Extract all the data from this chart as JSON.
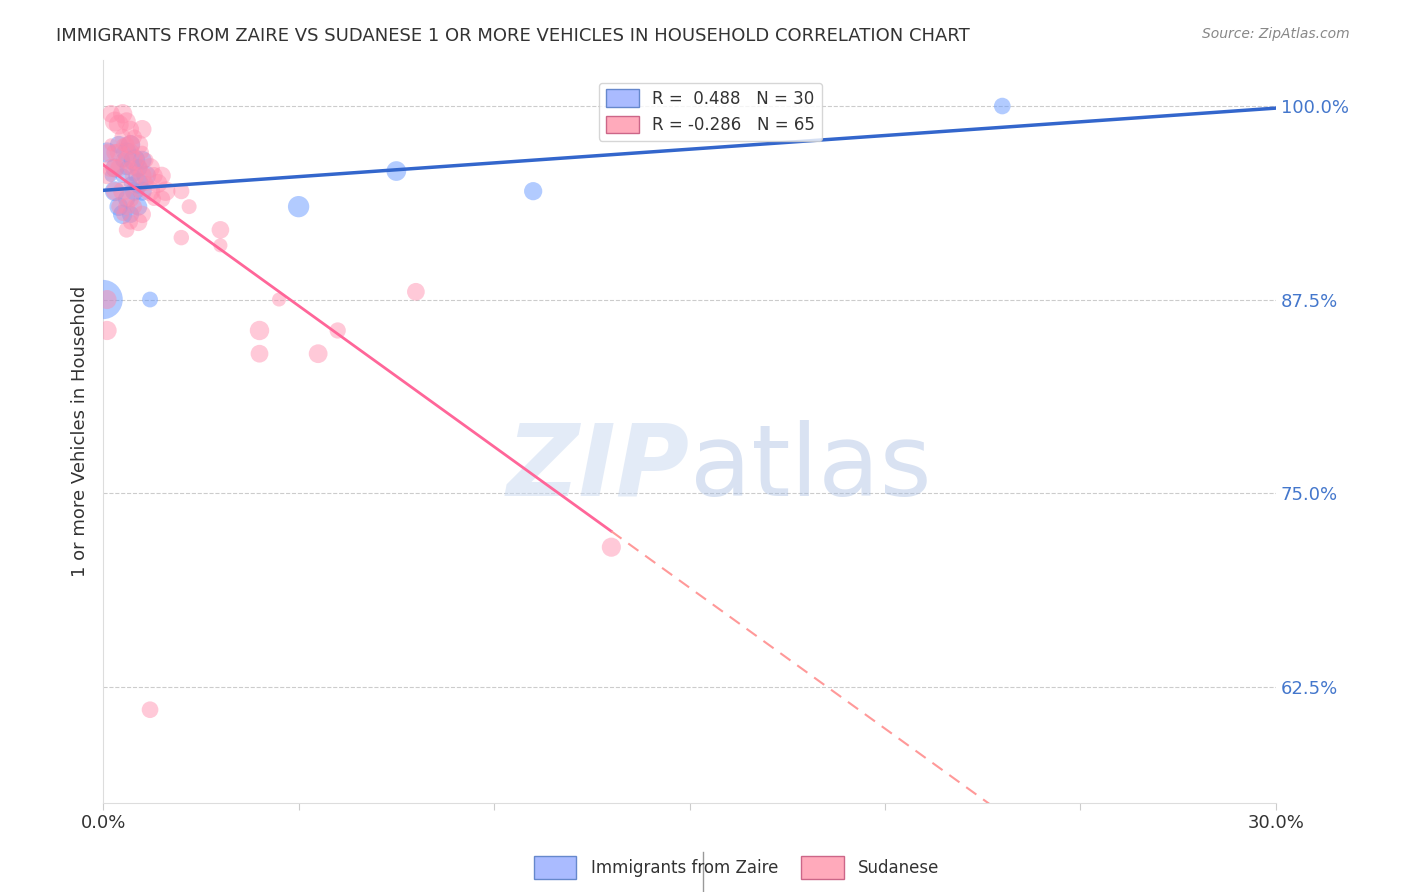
{
  "title": "IMMIGRANTS FROM ZAIRE VS SUDANESE 1 OR MORE VEHICLES IN HOUSEHOLD CORRELATION CHART",
  "source": "Source: ZipAtlas.com",
  "ylabel": "1 or more Vehicles in Household",
  "ytick_labels": [
    "100.0%",
    "87.5%",
    "75.0%",
    "62.5%"
  ],
  "ytick_values": [
    1.0,
    0.875,
    0.75,
    0.625
  ],
  "xmin": 0.0,
  "xmax": 0.3,
  "ymin": 0.55,
  "ymax": 1.03,
  "watermark_zip": "ZIP",
  "watermark_atlas": "atlas",
  "zaire_color": "#6699ff",
  "sudanese_color": "#ff88aa",
  "zaire_marker_alpha": 0.5,
  "sudanese_marker_alpha": 0.45,
  "zaire_R": 0.488,
  "zaire_N": 30,
  "sudanese_R": -0.286,
  "sudanese_N": 65,
  "zaire_legend_label": "R =  0.488   N = 30",
  "sudanese_legend_label": "R = -0.286   N = 65",
  "bottom_legend_zaire": "Immigrants from Zaire",
  "bottom_legend_sudanese": "Sudanese",
  "zaire_points": [
    [
      0.001,
      0.97
    ],
    [
      0.002,
      0.955
    ],
    [
      0.003,
      0.96
    ],
    [
      0.003,
      0.945
    ],
    [
      0.004,
      0.975
    ],
    [
      0.005,
      0.965
    ],
    [
      0.005,
      0.955
    ],
    [
      0.006,
      0.97
    ],
    [
      0.006,
      0.96
    ],
    [
      0.007,
      0.95
    ],
    [
      0.007,
      0.975
    ],
    [
      0.008,
      0.965
    ],
    [
      0.008,
      0.955
    ],
    [
      0.009,
      0.96
    ],
    [
      0.009,
      0.95
    ],
    [
      0.01,
      0.965
    ],
    [
      0.011,
      0.955
    ],
    [
      0.012,
      0.875
    ],
    [
      0.05,
      0.935
    ],
    [
      0.075,
      0.958
    ],
    [
      0.11,
      0.945
    ],
    [
      0.0,
      0.875
    ],
    [
      0.23,
      1.0
    ],
    [
      0.005,
      0.93
    ],
    [
      0.006,
      0.94
    ],
    [
      0.007,
      0.93
    ],
    [
      0.008,
      0.945
    ],
    [
      0.009,
      0.935
    ],
    [
      0.01,
      0.945
    ],
    [
      0.004,
      0.935
    ]
  ],
  "sudanese_points": [
    [
      0.002,
      0.995
    ],
    [
      0.003,
      0.99
    ],
    [
      0.004,
      0.988
    ],
    [
      0.005,
      0.995
    ],
    [
      0.005,
      0.975
    ],
    [
      0.006,
      0.99
    ],
    [
      0.006,
      0.975
    ],
    [
      0.007,
      0.985
    ],
    [
      0.007,
      0.97
    ],
    [
      0.007,
      0.96
    ],
    [
      0.008,
      0.98
    ],
    [
      0.008,
      0.965
    ],
    [
      0.008,
      0.955
    ],
    [
      0.009,
      0.975
    ],
    [
      0.009,
      0.96
    ],
    [
      0.009,
      0.945
    ],
    [
      0.01,
      0.97
    ],
    [
      0.01,
      0.955
    ],
    [
      0.011,
      0.965
    ],
    [
      0.011,
      0.95
    ],
    [
      0.012,
      0.96
    ],
    [
      0.012,
      0.945
    ],
    [
      0.013,
      0.955
    ],
    [
      0.013,
      0.94
    ],
    [
      0.014,
      0.95
    ],
    [
      0.015,
      0.94
    ],
    [
      0.015,
      0.955
    ],
    [
      0.016,
      0.945
    ],
    [
      0.001,
      0.97
    ],
    [
      0.001,
      0.955
    ],
    [
      0.002,
      0.96
    ],
    [
      0.003,
      0.945
    ],
    [
      0.004,
      0.935
    ],
    [
      0.005,
      0.93
    ],
    [
      0.005,
      0.945
    ],
    [
      0.006,
      0.935
    ],
    [
      0.006,
      0.92
    ],
    [
      0.007,
      0.94
    ],
    [
      0.007,
      0.925
    ],
    [
      0.008,
      0.935
    ],
    [
      0.009,
      0.925
    ],
    [
      0.01,
      0.93
    ],
    [
      0.02,
      0.915
    ],
    [
      0.02,
      0.945
    ],
    [
      0.022,
      0.935
    ],
    [
      0.03,
      0.92
    ],
    [
      0.03,
      0.91
    ],
    [
      0.04,
      0.84
    ],
    [
      0.04,
      0.855
    ],
    [
      0.045,
      0.875
    ],
    [
      0.055,
      0.84
    ],
    [
      0.06,
      0.855
    ],
    [
      0.001,
      0.875
    ],
    [
      0.001,
      0.855
    ],
    [
      0.13,
      0.715
    ],
    [
      0.08,
      0.88
    ],
    [
      0.003,
      0.96
    ],
    [
      0.004,
      0.97
    ],
    [
      0.005,
      0.98
    ],
    [
      0.003,
      0.97
    ],
    [
      0.004,
      0.96
    ],
    [
      0.002,
      0.975
    ],
    [
      0.01,
      0.985
    ],
    [
      0.006,
      0.965
    ],
    [
      0.007,
      0.975
    ],
    [
      0.012,
      0.61
    ]
  ]
}
